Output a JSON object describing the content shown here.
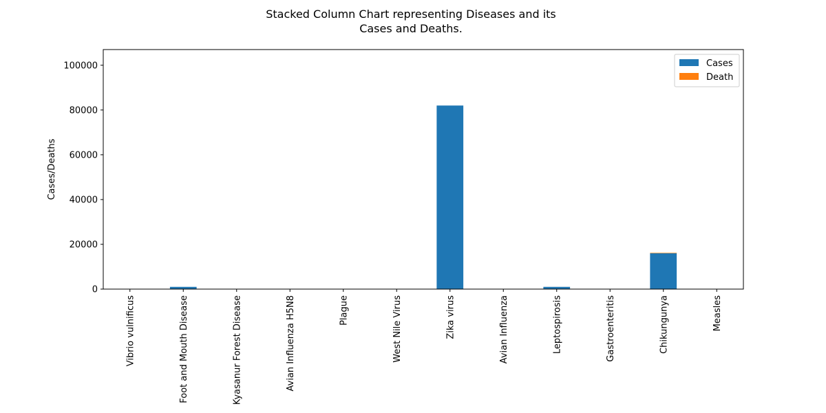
{
  "chart_data": {
    "type": "bar",
    "stacked": true,
    "title_lines": [
      "Stacked Column Chart representing Diseases and its",
      "Cases and Deaths."
    ],
    "xlabel": "",
    "ylabel": "Cases/Deaths",
    "ylim": [
      0,
      107000
    ],
    "yticks": [
      0,
      20000,
      40000,
      60000,
      80000,
      100000
    ],
    "ytick_labels": [
      "0",
      "20000",
      "40000",
      "60000",
      "80000",
      "100000"
    ],
    "grid": false,
    "legend_position": "top-right",
    "categories": [
      "Vibrio vulnificus",
      "Foot and Mouth Disease",
      "Kyasanur Forest Disease",
      "Avian Influenza H5N8",
      "Plague",
      "West Nile Virus",
      "Zika virus",
      "Avian Influenza",
      "Leptospirosis",
      "Gastroenteritis",
      "Chikungunya",
      "Measles"
    ],
    "series": [
      {
        "name": "Cases",
        "color": "#1f77b4",
        "values": [
          20,
          1000,
          30,
          20,
          10,
          20,
          82000,
          10,
          1000,
          60,
          16000,
          20
        ]
      },
      {
        "name": "Death",
        "color": "#ff7f0e",
        "values": [
          2,
          0,
          5,
          0,
          2,
          1,
          0,
          1,
          10,
          2,
          200,
          0
        ]
      }
    ]
  }
}
